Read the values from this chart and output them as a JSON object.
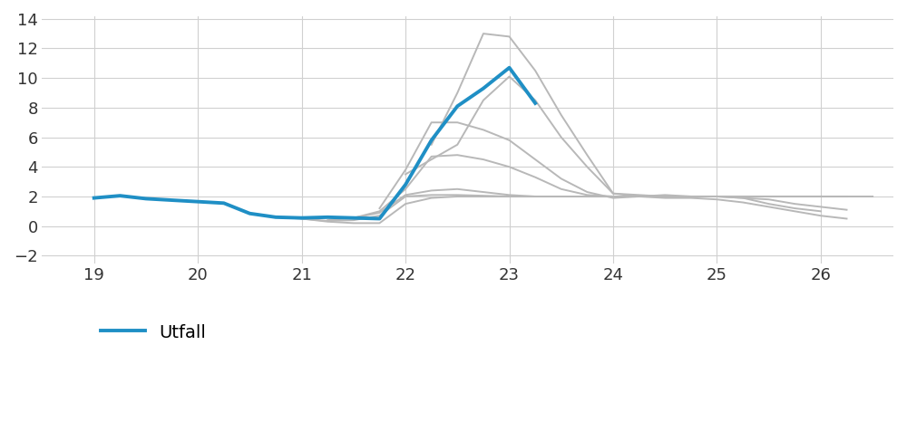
{
  "background_color": "#ffffff",
  "xlim": [
    18.5,
    26.7
  ],
  "ylim": [
    -2.5,
    14.2
  ],
  "xticks": [
    19,
    20,
    21,
    22,
    23,
    24,
    25,
    26
  ],
  "yticks": [
    -2,
    0,
    2,
    4,
    6,
    8,
    10,
    12,
    14
  ],
  "grid_color": "#d0d0d0",
  "actual_color": "#1f8fc5",
  "actual_linewidth": 2.8,
  "forecast_color": "#b8b8b8",
  "forecast_linewidth": 1.4,
  "legend_label": "Utfall",
  "actual_x": [
    19.0,
    19.25,
    19.5,
    19.75,
    20.0,
    20.25,
    20.5,
    20.75,
    21.0,
    21.25,
    21.5,
    21.75,
    22.0,
    22.25,
    22.5,
    22.75,
    23.0,
    23.25
  ],
  "actual_y": [
    1.9,
    2.05,
    1.85,
    1.75,
    1.65,
    1.55,
    0.85,
    0.6,
    0.55,
    0.6,
    0.55,
    0.5,
    2.8,
    5.8,
    8.1,
    9.3,
    10.7,
    8.3
  ],
  "forecasts": [
    {
      "x": [
        20.5,
        20.75,
        21.0,
        21.25,
        21.5,
        21.75,
        22.0,
        22.25,
        22.5,
        22.75,
        23.0,
        23.25,
        23.5,
        23.75,
        24.0,
        24.25,
        24.5,
        24.75,
        25.0,
        25.25,
        25.5,
        25.75,
        26.0,
        26.25,
        26.5
      ],
      "x_vals": [
        20.5,
        20.75,
        21.0,
        21.25,
        21.5,
        21.75,
        22.0,
        22.25,
        22.5,
        22.75,
        23.0,
        23.25,
        23.5,
        23.75,
        24.0,
        24.25,
        24.5,
        24.75,
        25.0,
        25.25,
        25.5,
        25.75,
        26.0,
        26.25,
        26.5
      ],
      "y_vals": [
        0.85,
        0.6,
        0.5,
        0.3,
        0.2,
        0.2,
        1.5,
        1.9,
        2.0,
        2.0,
        2.0,
        2.0,
        2.0,
        2.0,
        2.0,
        2.0,
        2.0,
        2.0,
        2.0,
        2.0,
        2.0,
        2.0,
        2.0,
        2.0,
        2.0
      ]
    },
    {
      "x_vals": [
        21.0,
        21.25,
        21.5,
        21.75,
        22.0,
        22.25,
        22.5,
        22.75,
        23.0,
        23.25,
        23.5,
        23.75,
        24.0,
        24.25,
        24.5,
        24.75,
        25.0,
        25.25,
        25.5,
        25.75,
        26.0,
        26.25
      ],
      "y_vals": [
        0.5,
        0.35,
        0.4,
        0.7,
        2.0,
        2.1,
        2.1,
        2.05,
        2.0,
        2.0,
        2.0,
        2.0,
        2.0,
        2.0,
        2.0,
        2.0,
        2.0,
        2.0,
        2.0,
        2.0,
        2.0,
        2.0
      ]
    },
    {
      "x_vals": [
        21.25,
        21.5,
        21.75,
        22.0,
        22.25,
        22.5,
        22.75,
        23.0,
        23.25,
        23.5,
        23.75,
        24.0,
        24.25,
        24.5,
        24.75,
        25.0,
        25.25,
        25.5,
        25.75,
        26.0
      ],
      "y_vals": [
        0.4,
        0.55,
        0.9,
        2.1,
        2.4,
        2.5,
        2.3,
        2.1,
        2.0,
        2.0,
        2.0,
        2.0,
        2.0,
        2.0,
        2.0,
        2.0,
        2.0,
        2.0,
        2.0,
        2.0
      ]
    },
    {
      "x_vals": [
        21.5,
        21.75,
        22.0,
        22.25,
        22.5,
        22.75,
        23.0,
        23.25,
        23.5,
        23.75,
        24.0,
        24.25,
        24.5,
        24.75,
        25.0,
        25.25,
        25.5,
        25.75,
        26.0,
        26.25
      ],
      "y_vals": [
        0.55,
        1.0,
        2.5,
        4.7,
        4.8,
        4.5,
        4.0,
        3.3,
        2.5,
        2.1,
        2.0,
        2.0,
        2.0,
        2.0,
        2.0,
        2.0,
        2.0,
        2.0,
        2.0,
        2.0
      ]
    },
    {
      "x_vals": [
        21.75,
        22.0,
        22.25,
        22.5,
        22.75,
        23.0,
        23.25,
        23.5,
        23.75,
        24.0,
        24.25,
        24.5,
        24.75,
        25.0,
        25.25,
        25.5,
        25.75,
        26.0,
        26.25
      ],
      "y_vals": [
        1.2,
        3.8,
        7.0,
        7.0,
        6.5,
        5.8,
        4.5,
        3.2,
        2.3,
        1.9,
        2.0,
        2.1,
        2.0,
        2.0,
        1.9,
        1.8,
        1.5,
        1.3,
        1.1
      ]
    },
    {
      "x_vals": [
        22.0,
        22.25,
        22.5,
        22.75,
        23.0,
        23.25,
        23.5,
        23.75,
        24.0,
        24.25,
        24.5,
        24.75,
        25.0,
        25.25,
        25.5,
        25.75,
        26.0,
        26.25
      ],
      "y_vals": [
        3.5,
        4.5,
        5.5,
        8.5,
        10.1,
        8.5,
        6.0,
        4.0,
        2.2,
        2.0,
        1.9,
        1.9,
        1.8,
        1.6,
        1.3,
        1.0,
        0.7,
        0.5
      ]
    },
    {
      "x_vals": [
        22.25,
        22.5,
        22.75,
        23.0,
        23.25,
        23.5,
        23.75,
        24.0,
        24.25,
        24.5,
        24.75,
        25.0,
        25.25,
        25.5,
        25.75,
        26.0
      ],
      "y_vals": [
        5.5,
        9.0,
        13.0,
        12.8,
        10.5,
        7.5,
        4.8,
        2.2,
        2.1,
        2.0,
        2.0,
        2.0,
        1.9,
        1.5,
        1.2,
        1.0
      ]
    }
  ]
}
